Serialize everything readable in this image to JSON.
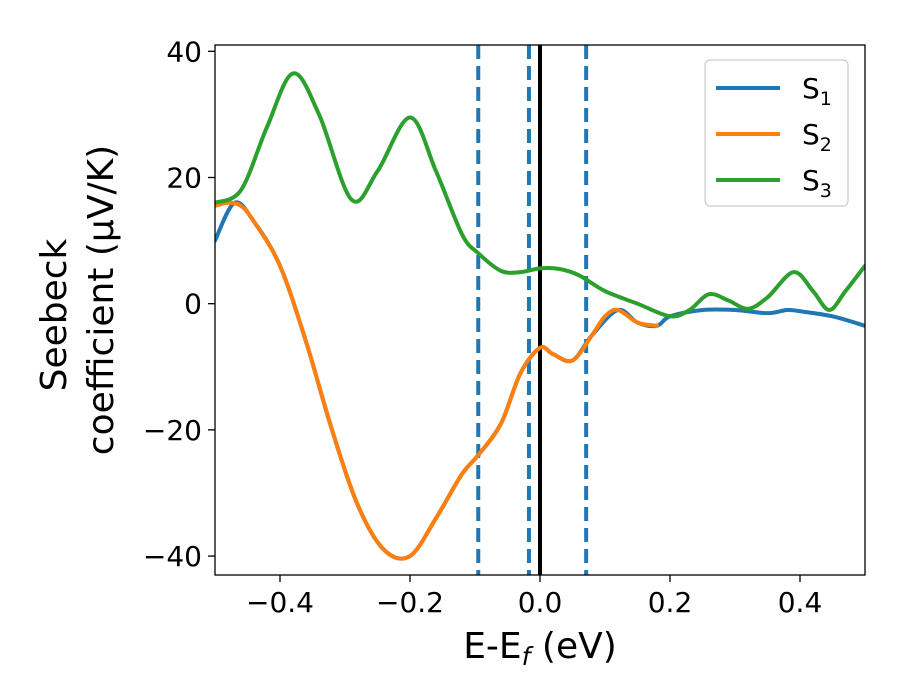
{
  "chart_data": {
    "type": "line",
    "xlabel_main": "E-E",
    "xlabel_sub": "f",
    "xlabel_unit": " (eV)",
    "ylabel_line1": "Seebeck",
    "ylabel_line2": "coefficient  (μV/K)",
    "xlim": [
      -0.5,
      0.5
    ],
    "ylim": [
      -43,
      41
    ],
    "xticks": [
      -0.4,
      -0.2,
      0.0,
      0.2,
      0.4
    ],
    "xtick_labels": [
      "−0.4",
      "−0.2",
      "0.0",
      "0.2",
      "0.4"
    ],
    "yticks": [
      40,
      20,
      0,
      -20,
      -40
    ],
    "ytick_labels": [
      "40",
      "20",
      "0",
      "−20",
      "−40"
    ],
    "grid": false,
    "legend_position": "top-right",
    "vlines_dashed": [
      -0.095,
      -0.017,
      0.071
    ],
    "vline_solid": 0.0,
    "series": [
      {
        "name": "S",
        "sub": "1",
        "color": "#1f77b4",
        "x": [
          -0.5,
          -0.47,
          -0.44,
          -0.4,
          -0.36,
          -0.32,
          -0.28,
          -0.24,
          -0.2,
          -0.16,
          -0.12,
          -0.095,
          -0.06,
          -0.03,
          0.0,
          0.02,
          0.05,
          0.08,
          0.12,
          0.15,
          0.18,
          0.2,
          0.25,
          0.3,
          0.35,
          0.38,
          0.4,
          0.45,
          0.5
        ],
        "y": [
          10,
          16,
          13,
          6,
          -6,
          -20,
          -32,
          -39,
          -40,
          -34,
          -27,
          -24,
          -19,
          -11,
          -7,
          -8,
          -9,
          -5,
          -1,
          -3,
          -3.5,
          -2,
          -1,
          -1,
          -1.5,
          -1,
          -1.2,
          -2,
          -3.5
        ]
      },
      {
        "name": "S",
        "sub": "2",
        "color": "#ff7f0e",
        "x": [
          -0.5,
          -0.48,
          -0.46,
          -0.44,
          -0.4,
          -0.36,
          -0.32,
          -0.28,
          -0.24,
          -0.2,
          -0.16,
          -0.12,
          -0.095,
          -0.06,
          -0.03,
          0.0,
          0.02,
          0.05,
          0.08,
          0.1,
          0.12,
          0.15,
          0.18
        ],
        "y": [
          15.5,
          16,
          15.5,
          13,
          6,
          -6,
          -20,
          -32,
          -39,
          -40,
          -34,
          -27,
          -24,
          -19,
          -11,
          -7,
          -8,
          -9,
          -5,
          -2,
          -1,
          -3,
          -3.5
        ]
      },
      {
        "name": "S",
        "sub": "3",
        "color": "#2ca02c",
        "x": [
          -0.5,
          -0.46,
          -0.42,
          -0.38,
          -0.34,
          -0.29,
          -0.25,
          -0.2,
          -0.16,
          -0.12,
          -0.095,
          -0.06,
          -0.03,
          0.0,
          0.03,
          0.06,
          0.1,
          0.15,
          0.2,
          0.23,
          0.26,
          0.29,
          0.32,
          0.35,
          0.39,
          0.42,
          0.445,
          0.47,
          0.5
        ],
        "y": [
          16,
          18,
          28,
          36.5,
          30,
          16.5,
          21,
          29.5,
          21,
          11,
          8,
          5.2,
          5,
          5.6,
          5.5,
          4.5,
          2,
          0,
          -2,
          -1,
          1.5,
          0.5,
          -0.8,
          1,
          5,
          2,
          -1,
          2,
          6
        ]
      }
    ]
  }
}
